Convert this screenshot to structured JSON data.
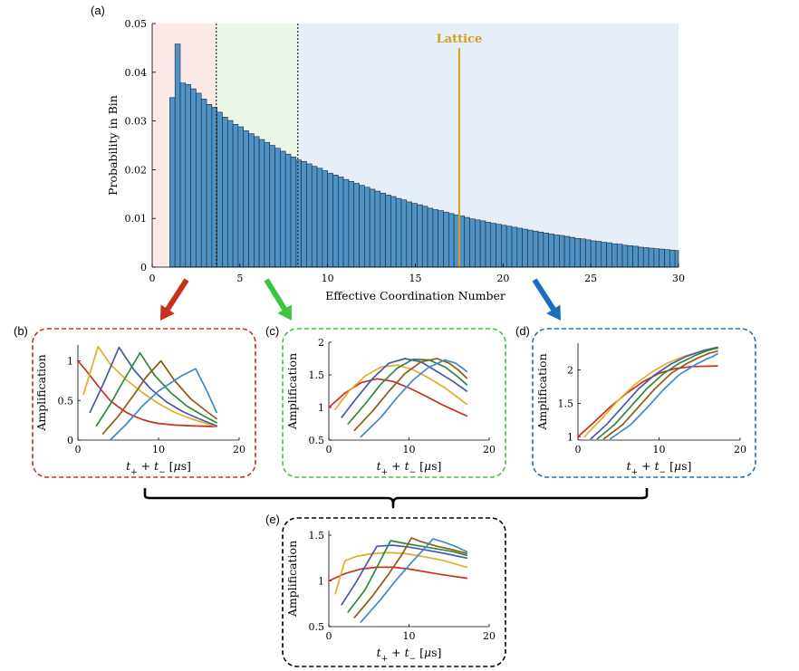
{
  "panel_labels": {
    "a": "(a)",
    "b": "(b)",
    "c": "(c)",
    "d": "(d)",
    "e": "(e)"
  },
  "colors": {
    "bar": "#4f92c6",
    "region_low": "#fbeae7",
    "region_mid": "#eaf6e8",
    "region_high": "#e6eef8",
    "lattice": "#d4a017",
    "arrow_red": "#c7301c",
    "arrow_green": "#3fc43f",
    "arrow_blue": "#1a70b8",
    "box_b": "#c7301c",
    "box_c": "#3fc43f",
    "box_d": "#1a70b8",
    "box_e": "#000000",
    "lines": [
      "#c7301c",
      "#e4ac2a",
      "#4a58a8",
      "#2a8a3e",
      "#8f5a12",
      "#3e8ac6"
    ]
  },
  "chart_data": [
    {
      "id": "a",
      "type": "bar",
      "title": "",
      "xlabel": "Effective Coordination Number",
      "ylabel": "Probability in Bin",
      "xlim": [
        0,
        30
      ],
      "ylim": [
        0,
        0.05
      ],
      "xticks": [
        0,
        5,
        10,
        15,
        20,
        25,
        30
      ],
      "yticks": [
        0,
        0.01,
        0.02,
        0.03,
        0.04,
        0.05
      ],
      "ytick_labels": [
        "0",
        "0.01",
        "0.02",
        "0.03",
        "0.04",
        "0.05"
      ],
      "bin_start": 1.0,
      "bin_width": 0.3,
      "values": [
        0.0348,
        0.0458,
        0.0378,
        0.0375,
        0.0366,
        0.0357,
        0.0345,
        0.0334,
        0.0328,
        0.0318,
        0.0308,
        0.0301,
        0.0293,
        0.0288,
        0.028,
        0.0274,
        0.0268,
        0.0262,
        0.0256,
        0.025,
        0.0244,
        0.0238,
        0.0232,
        0.0226,
        0.022,
        0.0217,
        0.0212,
        0.0207,
        0.0203,
        0.0198,
        0.0193,
        0.0189,
        0.0185,
        0.018,
        0.0176,
        0.0172,
        0.0168,
        0.0164,
        0.016,
        0.0156,
        0.0152,
        0.0148,
        0.0145,
        0.0141,
        0.0138,
        0.0134,
        0.0131,
        0.0128,
        0.0125,
        0.0121,
        0.0118,
        0.0116,
        0.0113,
        0.011,
        0.0107,
        0.0105,
        0.0102,
        0.0099,
        0.0097,
        0.0095,
        0.0092,
        0.009,
        0.0088,
        0.0086,
        0.0084,
        0.0082,
        0.008,
        0.0078,
        0.0076,
        0.0074,
        0.0072,
        0.007,
        0.0068,
        0.0066,
        0.0065,
        0.0063,
        0.0061,
        0.0059,
        0.0058,
        0.0056,
        0.0054,
        0.0053,
        0.0051,
        0.005,
        0.0048,
        0.0047,
        0.0045,
        0.0044,
        0.0043,
        0.0041,
        0.004,
        0.0039,
        0.0038,
        0.0037,
        0.0036,
        0.0035,
        0.0034,
        0.0033,
        0.0032,
        0.0031,
        0.003,
        0.0029,
        0.0028,
        0.0027,
        0.0026,
        0.0025,
        0.0024,
        0.0023,
        0.0022,
        0.0021,
        0.002,
        0.002,
        0.0019,
        0.0018,
        0.0017,
        0.0017,
        0.0016,
        0.0015,
        0.0015,
        0.0014,
        0.0014,
        0.0013,
        0.0013,
        0.0012,
        0.0012,
        0.0011,
        0.0011,
        0.0011,
        0.001,
        0.001,
        0.001,
        0.0009,
        0.0009,
        0.0009,
        0.0009,
        0.0008,
        0.0008,
        0.0008,
        0.0008,
        0.0007,
        0.0007,
        0.0007,
        0.0007,
        0.0007,
        0.0006,
        0.0006,
        0.0006,
        0.0006,
        0.0006,
        0.0006,
        0.0006,
        0.0005,
        0.0005,
        0.0005,
        0.0005,
        0.0005,
        0.0005,
        0.0005,
        0.0005,
        0.0005,
        0.0005,
        0.0005,
        0.0005,
        0.0005,
        0.0005,
        0.0005,
        0.0005,
        0.0005,
        0.0005,
        0.0005,
        0.0005,
        0.0005,
        0.0005,
        0.0005,
        0.0005,
        0.0005,
        0.0005,
        0.0005,
        0.0005
      ],
      "region_boundaries": [
        3.65,
        8.3
      ],
      "lattice_x": 17.5,
      "lattice_label": "Lattice"
    },
    {
      "id": "b",
      "type": "line",
      "xlabel": "t_+ + t_- [μs]",
      "ylabel": "Amplification",
      "xlim": [
        0,
        20
      ],
      "ylim": [
        0,
        1.2
      ],
      "xticks": [
        0,
        10,
        20
      ],
      "yticks": [
        0,
        0.5,
        1
      ],
      "ytick_labels": [
        "0",
        "0.5",
        "1"
      ],
      "series": [
        {
          "x": [
            0,
            1,
            2,
            3,
            4,
            5,
            6,
            7,
            8,
            9,
            10,
            12,
            14,
            17.2
          ],
          "y": [
            1.0,
            0.88,
            0.75,
            0.62,
            0.5,
            0.42,
            0.35,
            0.3,
            0.26,
            0.23,
            0.21,
            0.19,
            0.18,
            0.17
          ]
        },
        {
          "x": [
            0.7,
            2.5,
            4,
            6,
            8,
            10,
            12,
            14,
            17.2
          ],
          "y": [
            0.58,
            1.18,
            0.96,
            0.76,
            0.6,
            0.46,
            0.35,
            0.27,
            0.17
          ]
        },
        {
          "x": [
            1.5,
            3.2,
            5.1,
            7,
            9,
            11,
            13,
            15,
            17.2
          ],
          "y": [
            0.35,
            0.72,
            1.17,
            0.88,
            0.65,
            0.48,
            0.36,
            0.27,
            0.18
          ]
        },
        {
          "x": [
            2.3,
            4,
            5.5,
            7.7,
            9.5,
            11.5,
            13.5,
            15.5,
            17.2
          ],
          "y": [
            0.18,
            0.45,
            0.72,
            1.1,
            0.82,
            0.6,
            0.43,
            0.31,
            0.22
          ]
        },
        {
          "x": [
            3.1,
            5,
            7,
            8.5,
            10.3,
            12,
            14,
            16,
            17.2
          ],
          "y": [
            0.08,
            0.3,
            0.58,
            0.8,
            1.0,
            0.75,
            0.52,
            0.36,
            0.27
          ]
        },
        {
          "x": [
            4.0,
            6,
            8,
            10,
            11.5,
            13,
            14.6,
            16,
            17.2
          ],
          "y": [
            0.0,
            0.2,
            0.43,
            0.62,
            0.72,
            0.82,
            0.9,
            0.62,
            0.35
          ]
        }
      ]
    },
    {
      "id": "c",
      "type": "line",
      "xlabel": "t_+ + t_- [μs]",
      "ylabel": "Amplification",
      "xlim": [
        0,
        20
      ],
      "ylim": [
        0.5,
        2.0
      ],
      "xticks": [
        0,
        10,
        20
      ],
      "yticks": [
        0.5,
        1,
        1.5,
        2
      ],
      "ytick_labels": [
        "0.5",
        "1",
        "1.5",
        "2"
      ],
      "series": [
        {
          "x": [
            0,
            2,
            4,
            6,
            8,
            10,
            12,
            14,
            17.2
          ],
          "y": [
            1.0,
            1.22,
            1.38,
            1.44,
            1.4,
            1.3,
            1.18,
            1.05,
            0.87
          ]
        },
        {
          "x": [
            0.8,
            2.5,
            4.5,
            6.5,
            8.5,
            10.5,
            12.5,
            14.5,
            17.2
          ],
          "y": [
            0.97,
            1.25,
            1.48,
            1.62,
            1.65,
            1.58,
            1.45,
            1.3,
            1.05
          ]
        },
        {
          "x": [
            1.6,
            3.5,
            5.5,
            7.5,
            9.5,
            11.5,
            13.5,
            15.5,
            17.2
          ],
          "y": [
            0.85,
            1.15,
            1.45,
            1.68,
            1.75,
            1.7,
            1.55,
            1.4,
            1.25
          ]
        },
        {
          "x": [
            2.4,
            4.5,
            6.5,
            8.5,
            10.5,
            12.5,
            14.5,
            16,
            17.2
          ],
          "y": [
            0.75,
            1.05,
            1.36,
            1.6,
            1.74,
            1.73,
            1.62,
            1.48,
            1.35
          ]
        },
        {
          "x": [
            3.2,
            5.5,
            7.5,
            9.5,
            11.5,
            13.5,
            15,
            16.2,
            17.2
          ],
          "y": [
            0.65,
            0.95,
            1.25,
            1.52,
            1.7,
            1.75,
            1.68,
            1.57,
            1.45
          ]
        },
        {
          "x": [
            4.0,
            6.5,
            8.5,
            10.5,
            12.5,
            14.5,
            15.8,
            16.6,
            17.2
          ],
          "y": [
            0.55,
            0.85,
            1.15,
            1.42,
            1.62,
            1.73,
            1.68,
            1.61,
            1.55
          ]
        }
      ]
    },
    {
      "id": "d",
      "type": "line",
      "xlabel": "t_+ + t_- [μs]",
      "ylabel": "Amplification",
      "xlim": [
        0,
        20
      ],
      "ylim": [
        0.95,
        2.4
      ],
      "xticks": [
        0,
        10,
        20
      ],
      "yticks": [
        1,
        1.5,
        2
      ],
      "ytick_labels": [
        "1",
        "1.5",
        "2"
      ],
      "series": [
        {
          "x": [
            0,
            2,
            4,
            6,
            8,
            10,
            12,
            14,
            17.2
          ],
          "y": [
            1.0,
            1.22,
            1.45,
            1.65,
            1.82,
            1.95,
            2.02,
            2.05,
            2.06
          ]
        },
        {
          "x": [
            0.8,
            3,
            5,
            7,
            9,
            11,
            13,
            15,
            17.2
          ],
          "y": [
            1.0,
            1.28,
            1.55,
            1.78,
            1.96,
            2.1,
            2.2,
            2.27,
            2.32
          ]
        },
        {
          "x": [
            1.6,
            3.5,
            5.5,
            7.5,
            9.5,
            11.5,
            13.5,
            15.5,
            17.2
          ],
          "y": [
            0.97,
            1.18,
            1.45,
            1.72,
            1.93,
            2.09,
            2.21,
            2.29,
            2.34
          ]
        },
        {
          "x": [
            2.4,
            4.5,
            6.5,
            8.5,
            10.5,
            12.5,
            14.5,
            16,
            17.2
          ],
          "y": [
            0.97,
            1.18,
            1.45,
            1.72,
            1.94,
            2.1,
            2.22,
            2.29,
            2.33
          ]
        },
        {
          "x": [
            3.2,
            5.5,
            7.5,
            9.5,
            11.5,
            13.5,
            15,
            16.2,
            17.2
          ],
          "y": [
            0.97,
            1.18,
            1.45,
            1.72,
            1.95,
            2.1,
            2.19,
            2.25,
            2.28
          ]
        },
        {
          "x": [
            4.0,
            6.5,
            8.5,
            10.5,
            12.5,
            14.5,
            15.8,
            16.6,
            17.2
          ],
          "y": [
            0.97,
            1.18,
            1.43,
            1.7,
            1.93,
            2.08,
            2.16,
            2.2,
            2.24
          ]
        }
      ]
    },
    {
      "id": "e",
      "type": "line",
      "xlabel": "t_+ + t_- [μs]",
      "ylabel": "Amplification",
      "xlim": [
        0,
        20
      ],
      "ylim": [
        0.5,
        1.55
      ],
      "xticks": [
        0,
        10,
        20
      ],
      "yticks": [
        0.5,
        1,
        1.5
      ],
      "ytick_labels": [
        "0.5",
        "1",
        "1.5"
      ],
      "series": [
        {
          "x": [
            0,
            2,
            4,
            6,
            8,
            10,
            12,
            14,
            17.2
          ],
          "y": [
            1.0,
            1.08,
            1.13,
            1.15,
            1.15,
            1.13,
            1.1,
            1.07,
            1.03
          ]
        },
        {
          "x": [
            0.8,
            2,
            3.5,
            5.5,
            7.5,
            9.5,
            11.5,
            14,
            17.2
          ],
          "y": [
            0.86,
            1.22,
            1.27,
            1.3,
            1.31,
            1.3,
            1.27,
            1.23,
            1.15
          ]
        },
        {
          "x": [
            1.6,
            3.5,
            4.8,
            6,
            8,
            10,
            12,
            14.5,
            17.2
          ],
          "y": [
            0.74,
            1.0,
            1.2,
            1.38,
            1.39,
            1.37,
            1.34,
            1.3,
            1.25
          ]
        },
        {
          "x": [
            2.4,
            4.5,
            6,
            7.7,
            9.5,
            11.5,
            13.5,
            15.5,
            17.2
          ],
          "y": [
            0.66,
            0.9,
            1.15,
            1.44,
            1.41,
            1.38,
            1.35,
            1.32,
            1.28
          ]
        },
        {
          "x": [
            3.2,
            5.5,
            7.5,
            9.2,
            10.3,
            11.5,
            13.5,
            15.5,
            17.2
          ],
          "y": [
            0.6,
            0.84,
            1.08,
            1.3,
            1.47,
            1.43,
            1.38,
            1.34,
            1.3
          ]
        },
        {
          "x": [
            4.0,
            6.5,
            8.5,
            10.5,
            12.2,
            13,
            14.5,
            16,
            17.2
          ],
          "y": [
            0.55,
            0.8,
            1.02,
            1.22,
            1.38,
            1.46,
            1.42,
            1.37,
            1.32
          ]
        }
      ]
    }
  ]
}
